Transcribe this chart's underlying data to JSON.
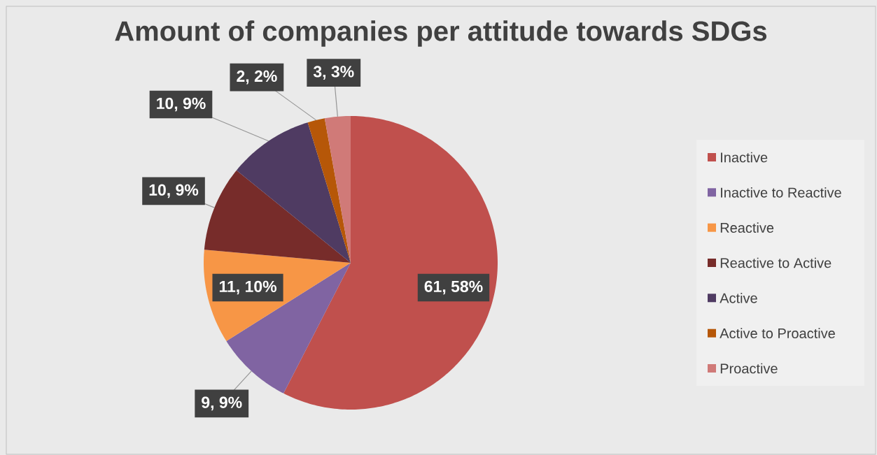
{
  "chart_data": {
    "type": "pie",
    "title": "Amount of companies per attitude towards SDGs",
    "categories": [
      "Inactive",
      "Inactive to Reactive",
      "Reactive",
      "Reactive to Active",
      "Active",
      "Active to Proactive",
      "Proactive"
    ],
    "values": [
      61,
      9,
      11,
      10,
      10,
      2,
      3
    ],
    "colors": [
      "#c0504d",
      "#8064a2",
      "#f79646",
      "#772c2a",
      "#4f3b62",
      "#b65708",
      "#d07a78"
    ],
    "value_labels": [
      "61, 58%",
      "9, 9%",
      "11, 10%",
      "10, 9%",
      "10, 9%",
      "2, 2%",
      "3, 3%"
    ],
    "legend": "right"
  }
}
